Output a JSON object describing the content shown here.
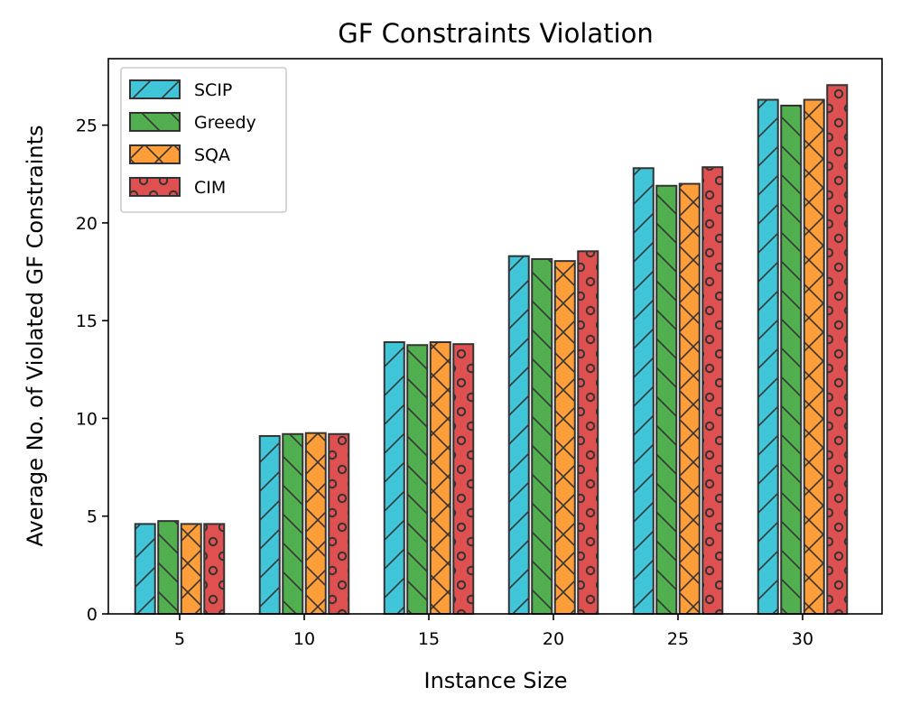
{
  "chart_data": {
    "type": "bar",
    "title": "GF Constraints Violation",
    "xlabel": "Instance Size",
    "ylabel": "Average No. of Violated GF Constraints",
    "categories": [
      "5",
      "10",
      "15",
      "20",
      "25",
      "30"
    ],
    "ylim": [
      0,
      28.4
    ],
    "yticks": [
      0,
      5,
      10,
      15,
      20,
      25
    ],
    "grid": false,
    "legend_position": "top-left",
    "series": [
      {
        "name": "SCIP",
        "color": "#40c6d8",
        "hatch": "forward-slash",
        "values": [
          4.6,
          9.1,
          13.9,
          18.3,
          22.8,
          26.3
        ]
      },
      {
        "name": "Greedy",
        "color": "#52af4f",
        "hatch": "back-slash",
        "values": [
          4.75,
          9.2,
          13.75,
          18.15,
          21.9,
          26.0
        ]
      },
      {
        "name": "SQA",
        "color": "#fd9e3a",
        "hatch": "cross",
        "values": [
          4.6,
          9.25,
          13.9,
          18.05,
          22.0,
          26.3
        ]
      },
      {
        "name": "CIM",
        "color": "#df5050",
        "hatch": "circles",
        "values": [
          4.6,
          9.2,
          13.8,
          18.55,
          22.85,
          27.05
        ]
      }
    ]
  }
}
